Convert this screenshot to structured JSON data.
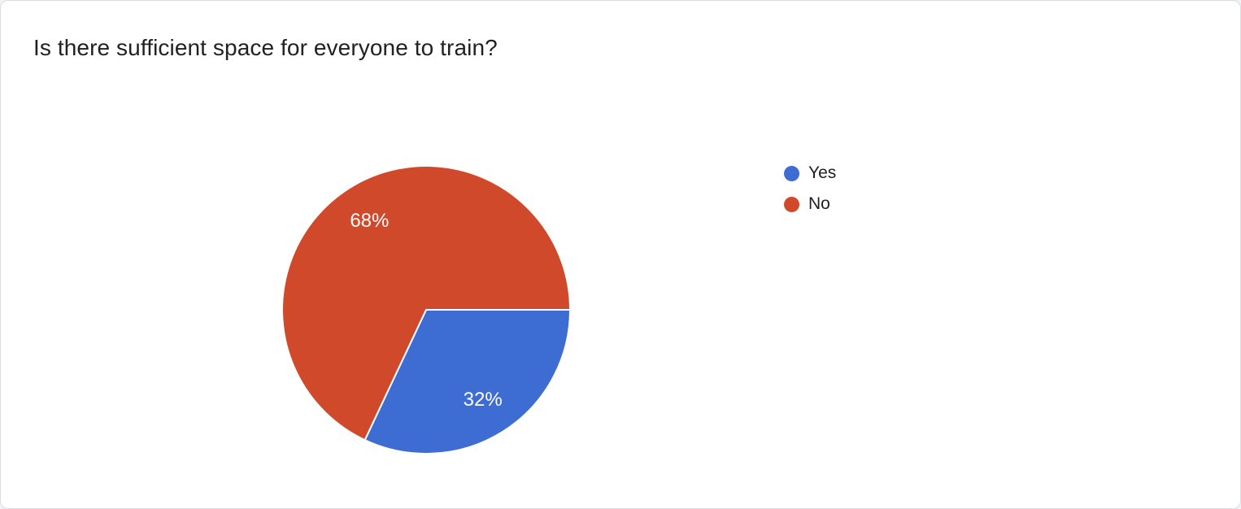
{
  "chart_data": {
    "type": "pie",
    "title": "Is there sufficient space for everyone to train?",
    "labels": [
      "Yes",
      "No"
    ],
    "values": [
      32,
      68
    ],
    "display_labels": [
      "32%",
      "68%"
    ],
    "colors": [
      "#3d6cd2",
      "#d0492b"
    ],
    "slice_label_color": "#ffffff",
    "slice_border_color": "#ffffff",
    "start_angle_deg": 90,
    "legend_position": "right"
  }
}
